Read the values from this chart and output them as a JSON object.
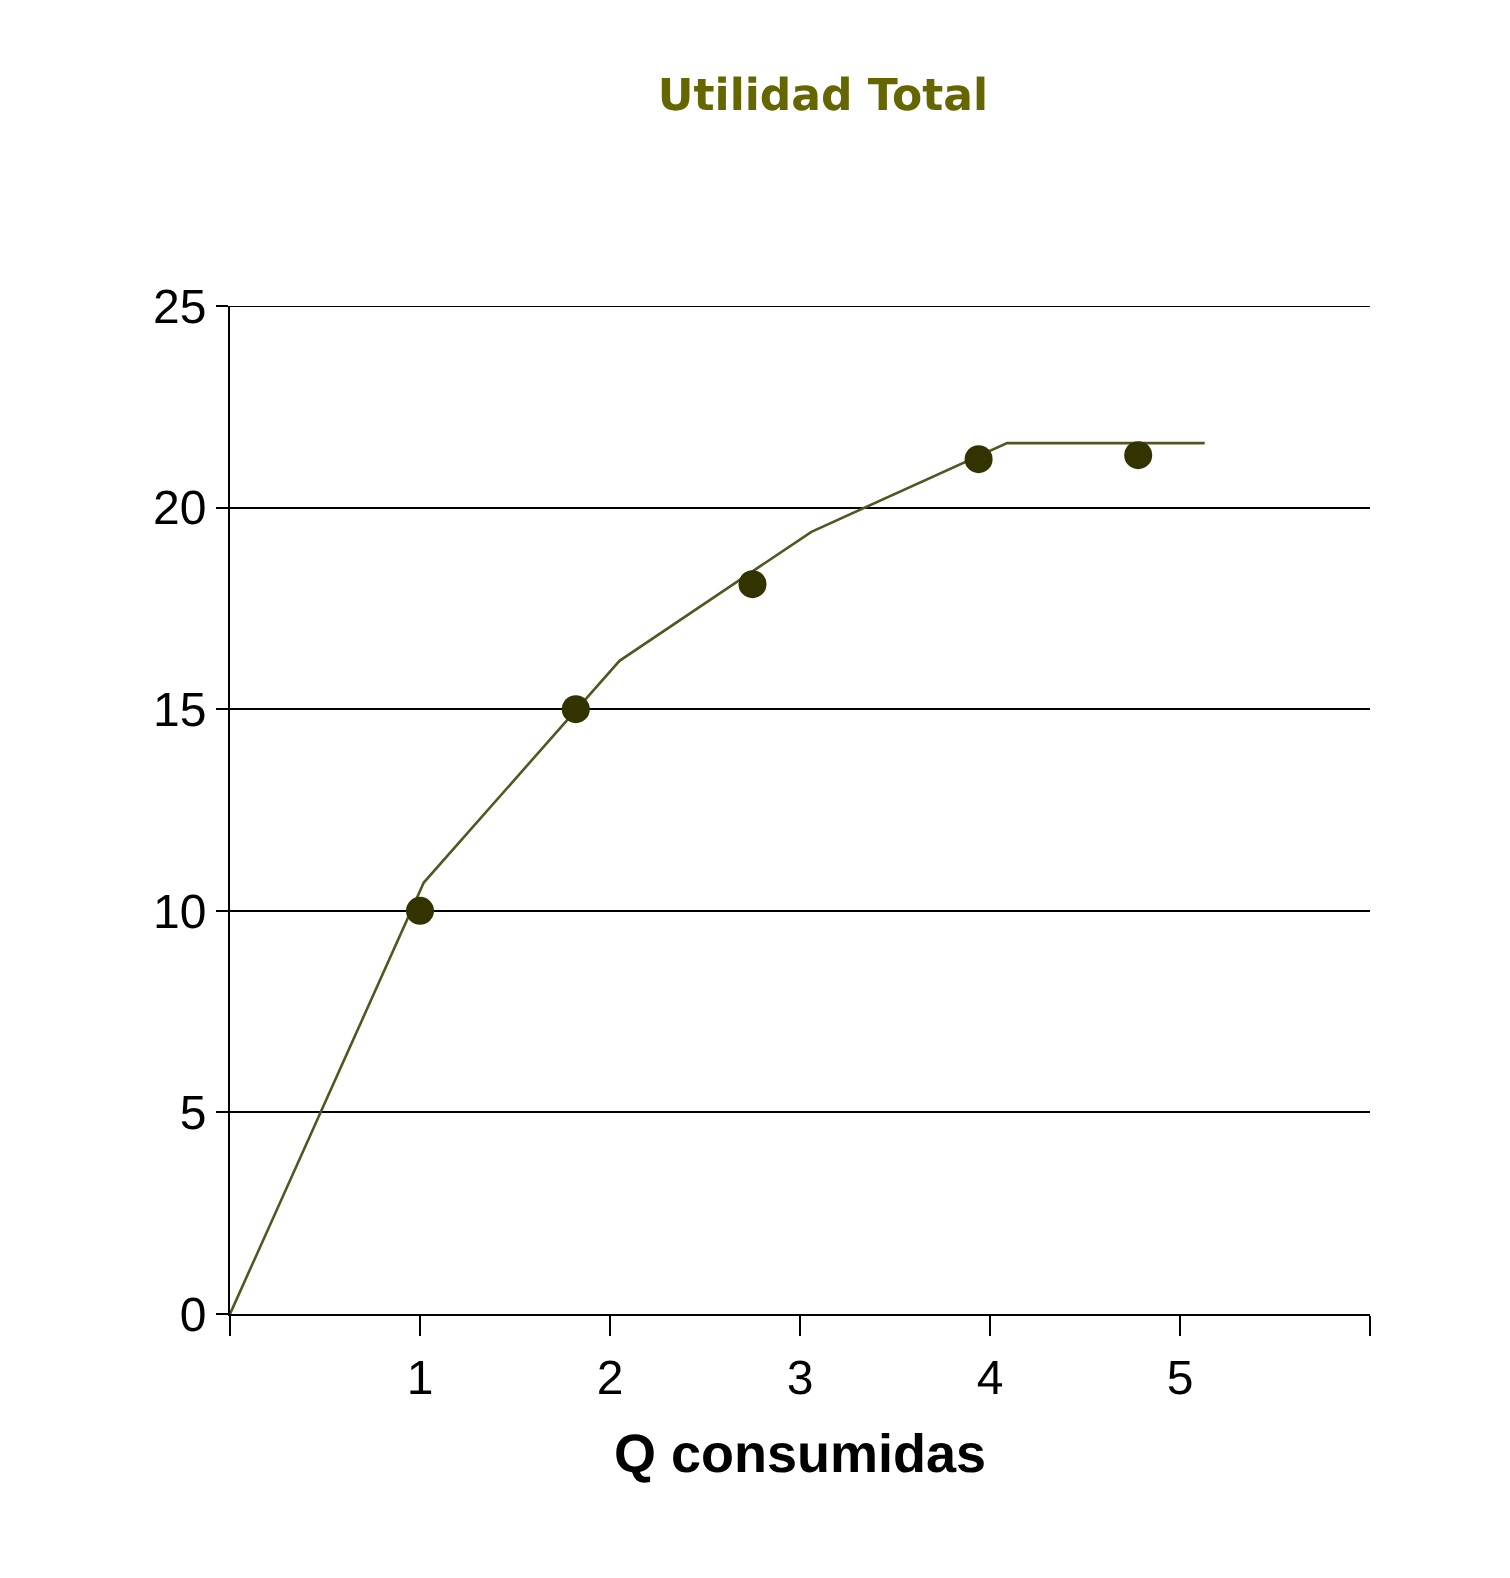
{
  "chart_data": {
    "type": "scatter",
    "title": "Utilidad Total",
    "xlabel": "Q consumidas",
    "xlim": [
      0,
      6
    ],
    "xticks": [
      {
        "value": 0,
        "label": null
      },
      1,
      2,
      3,
      4,
      5,
      {
        "value": 6,
        "label": null
      }
    ],
    "ylim": [
      0,
      25
    ],
    "yticks": [
      0,
      5,
      10,
      15,
      20,
      25
    ],
    "grid": "y",
    "series": [
      {
        "type": "line",
        "color": "#555522",
        "marker": "none",
        "line_style": "solid",
        "x": [
          0,
          1.02,
          2.05,
          3.06,
          4.09,
          5.13
        ],
        "values": [
          0,
          10.7,
          16.2,
          19.4,
          21.6,
          21.6
        ]
      },
      {
        "color": "#333300",
        "marker": "circle",
        "x": [
          1.0,
          1.82,
          2.75,
          3.94,
          4.78
        ],
        "values": [
          10,
          15,
          18.1,
          21.2,
          21.3
        ]
      }
    ]
  }
}
